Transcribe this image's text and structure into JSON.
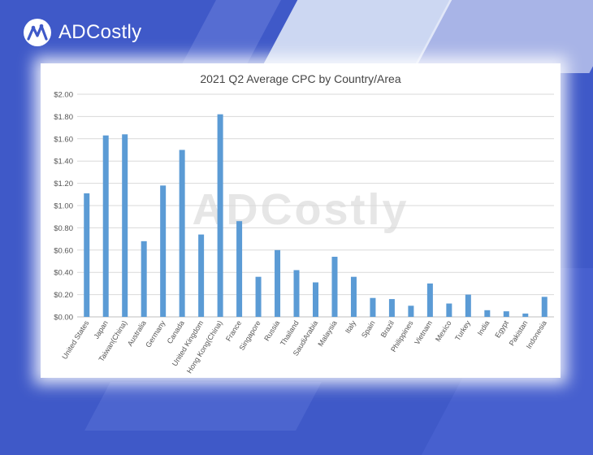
{
  "brand": {
    "name": "ADCostly",
    "logo_icon": "adcostly-logo-icon",
    "colors": {
      "background": "#3f59c8",
      "bar": "#5b9bd5"
    }
  },
  "watermark": "ADCostly",
  "chart_data": {
    "type": "bar",
    "title": "2021 Q2 Average CPC by Country/Area",
    "xlabel": "",
    "ylabel": "",
    "ylim": [
      0,
      2
    ],
    "grid": true,
    "legend": "none",
    "y_ticks": [
      "$0.00",
      "$0.20",
      "$0.40",
      "$0.60",
      "$0.80",
      "$1.00",
      "$1.20",
      "$1.40",
      "$1.60",
      "$1.80",
      "$2.00"
    ],
    "categories": [
      "United States",
      "Japan",
      "Taiwan(China)",
      "Australia",
      "Germany",
      "Canada",
      "United Kingdom",
      "Hong Kong(China)",
      "France",
      "Singapore",
      "Russia",
      "Thailand",
      "SaudiArabia",
      "Malaysia",
      "Italy",
      "Spain",
      "Brazil",
      "Philippines",
      "Vietnam",
      "Mexico",
      "Turkey",
      "India",
      "Egypt",
      "Pakistan",
      "Indonesia"
    ],
    "values": [
      1.11,
      1.63,
      1.64,
      0.68,
      1.18,
      1.5,
      0.74,
      1.82,
      0.86,
      0.36,
      0.6,
      0.42,
      0.31,
      0.54,
      0.36,
      0.17,
      0.16,
      0.1,
      0.3,
      0.12,
      0.2,
      0.06,
      0.05,
      0.03,
      0.18
    ]
  }
}
